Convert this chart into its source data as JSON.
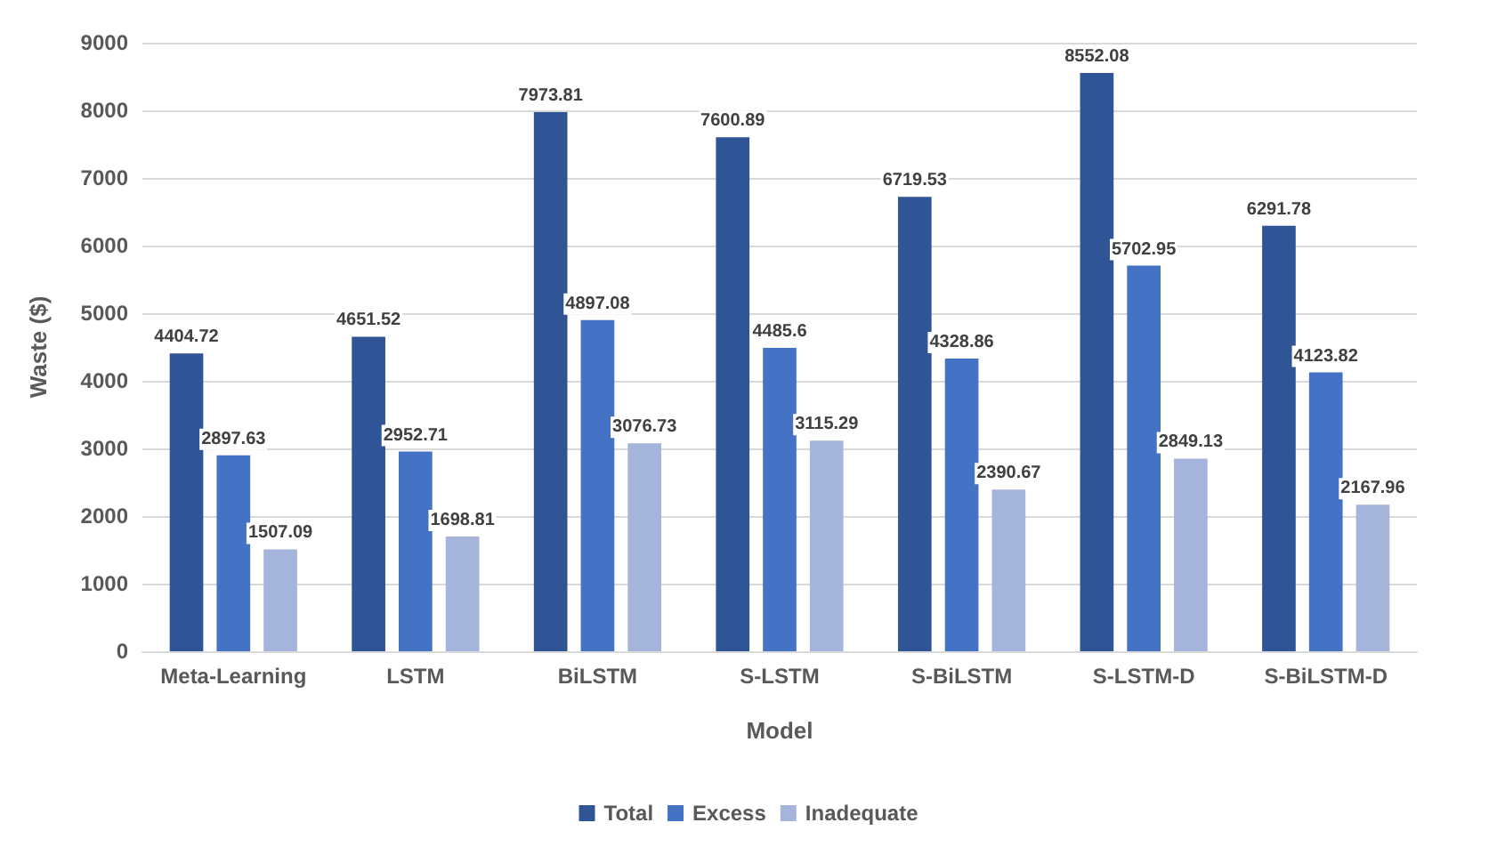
{
  "chart_data": {
    "type": "bar",
    "xlabel": "Model",
    "ylabel": "Waste ($)",
    "categories": [
      "Meta-Learning",
      "LSTM",
      "BiLSTM",
      "S-LSTM",
      "S-BiLSTM",
      "S-LSTM-D",
      "S-BiLSTM-D"
    ],
    "series": [
      {
        "name": "Total",
        "color": "#2f5597",
        "values": [
          4404.72,
          4651.52,
          7973.81,
          7600.89,
          6719.53,
          8552.08,
          6291.78
        ]
      },
      {
        "name": "Excess",
        "color": "#4472c4",
        "values": [
          2897.63,
          2952.71,
          4897.08,
          4485.6,
          4328.86,
          5702.95,
          4123.82
        ]
      },
      {
        "name": "Inadequate",
        "color": "#a5b4da",
        "values": [
          1507.09,
          1698.81,
          3076.73,
          3115.29,
          2390.67,
          2849.13,
          2167.96
        ]
      }
    ],
    "ylim": [
      0,
      9000
    ],
    "yticks": [
      0,
      1000,
      2000,
      3000,
      4000,
      5000,
      6000,
      7000,
      8000,
      9000
    ],
    "grid": "y",
    "legend": "bottom",
    "data_labels": true
  }
}
